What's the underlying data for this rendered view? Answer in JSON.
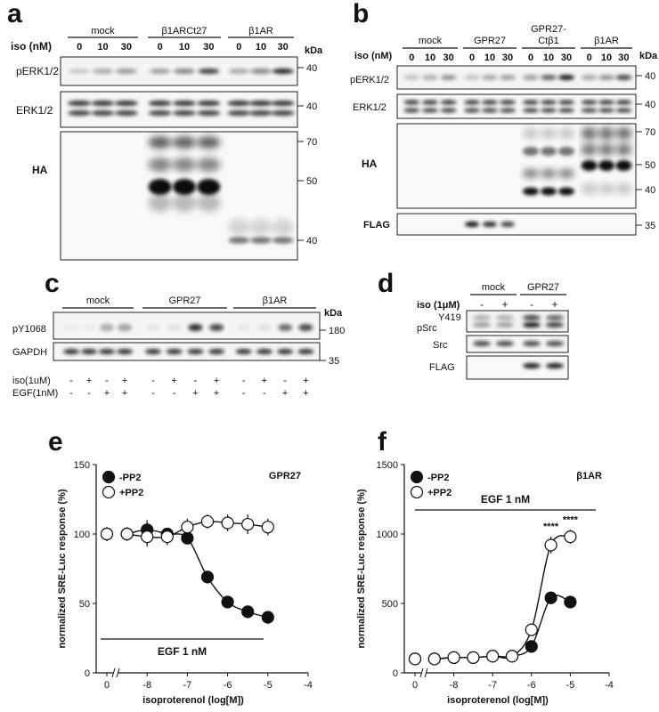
{
  "panels": {
    "a": {
      "letter": "a",
      "groups": [
        "mock",
        "β1ARCt27",
        "β1AR"
      ],
      "iso_label": "iso (nM)",
      "doses": [
        "0",
        "10",
        "30"
      ],
      "kda": "kDa",
      "blots": [
        {
          "label": "pERK1/2",
          "markers": [
            "40"
          ]
        },
        {
          "label": "ERK1/2",
          "markers": [
            "40"
          ]
        },
        {
          "label": "HA",
          "markers": [
            "70",
            "50",
            "40"
          ]
        }
      ]
    },
    "b": {
      "letter": "b",
      "groups": [
        "mock",
        "GPR27",
        "GPR27-\nCtβ1",
        "β1AR"
      ],
      "iso_label": "iso (nM)",
      "doses": [
        "0",
        "10",
        "30"
      ],
      "kda": "kDa",
      "blots": [
        {
          "label": "pERK1/2",
          "markers": [
            "40"
          ]
        },
        {
          "label": "ERK1/2",
          "markers": [
            "40"
          ]
        },
        {
          "label": "HA",
          "markers": [
            "70",
            "50",
            "40"
          ]
        },
        {
          "label": "FLAG",
          "markers": [
            "35"
          ]
        }
      ]
    },
    "c": {
      "letter": "c",
      "groups": [
        "mock",
        "GPR27",
        "β1AR"
      ],
      "kda": "kDa",
      "blots": [
        {
          "label": "pY1068",
          "markers": [
            "180"
          ]
        },
        {
          "label": "GAPDH",
          "markers": [
            "35"
          ]
        }
      ],
      "treatments": [
        {
          "label": "iso(1uM)",
          "signs": [
            "-",
            "+",
            "-",
            "+"
          ]
        },
        {
          "label": "EGF(1nM)",
          "signs": [
            "-",
            "-",
            "+",
            "+"
          ]
        }
      ]
    },
    "d": {
      "letter": "d",
      "groups": [
        "mock",
        "GPR27"
      ],
      "iso_label": "iso (1μM)",
      "signs": [
        "-",
        "+",
        "-",
        "+"
      ],
      "blots": [
        {
          "label": "pSrc",
          "sup": "Y419"
        },
        {
          "label": "Src"
        },
        {
          "label": "FLAG"
        }
      ]
    }
  },
  "chart_data": [
    {
      "panel": "e",
      "type": "scatter",
      "title": "GPR27",
      "xlabel": "isoproterenol (log[M])",
      "ylabel": "normalized SRE-Luc response (%)",
      "xlim": [
        -9.5,
        -4
      ],
      "ylim": [
        0,
        150
      ],
      "xticks": [
        "0",
        "-8",
        "-7",
        "-6",
        "-5",
        "-4"
      ],
      "yticks": [
        "0",
        "50",
        "100",
        "150"
      ],
      "annotation": "EGF 1 nM",
      "axis_break": true,
      "series": [
        {
          "name": "-PP2",
          "marker": "filled",
          "x": [
            0,
            -8.5,
            -8,
            -7.5,
            -7,
            -6.5,
            -6,
            -5.5,
            -5
          ],
          "y": [
            100,
            100,
            103,
            100,
            97,
            69,
            51,
            44,
            40
          ],
          "err": [
            4,
            4,
            7,
            4,
            4,
            3,
            3,
            4,
            2
          ]
        },
        {
          "name": "+PP2",
          "marker": "open",
          "x": [
            0,
            -8.5,
            -8,
            -7.5,
            -7,
            -6.5,
            -6,
            -5.5,
            -5
          ],
          "y": [
            100,
            100,
            98,
            98,
            105,
            109,
            108,
            107,
            105
          ],
          "err": [
            5,
            5,
            7,
            6,
            6,
            5,
            6,
            7,
            6
          ]
        }
      ]
    },
    {
      "panel": "f",
      "type": "scatter",
      "title": "β1AR",
      "xlabel": "isoproterenol (log[M])",
      "ylabel": "normalized SRE-Luc response (%)",
      "xlim": [
        -9.5,
        -4
      ],
      "ylim": [
        0,
        1500
      ],
      "xticks": [
        "0",
        "-8",
        "-7",
        "-6",
        "-5",
        "-4"
      ],
      "yticks": [
        "0",
        "500",
        "1000",
        "1500"
      ],
      "annotation": "EGF 1 nM",
      "axis_break": true,
      "significance": [
        {
          "x": -5.5,
          "label": "****"
        },
        {
          "x": -5,
          "label": "****"
        }
      ],
      "series": [
        {
          "name": "-PP2",
          "marker": "filled",
          "x": [
            0,
            -8.5,
            -8,
            -7.5,
            -7,
            -6.5,
            -6,
            -5.5,
            -5
          ],
          "y": [
            100,
            100,
            110,
            110,
            120,
            120,
            190,
            540,
            510
          ],
          "err": [
            20,
            20,
            20,
            20,
            20,
            20,
            25,
            30,
            30
          ]
        },
        {
          "name": "+PP2",
          "marker": "open",
          "x": [
            0,
            -8.5,
            -8,
            -7.5,
            -7,
            -6.5,
            -6,
            -5.5,
            -5
          ],
          "y": [
            100,
            100,
            110,
            110,
            120,
            120,
            310,
            920,
            980
          ],
          "err": [
            20,
            20,
            20,
            20,
            20,
            20,
            30,
            60,
            50
          ]
        }
      ]
    }
  ]
}
